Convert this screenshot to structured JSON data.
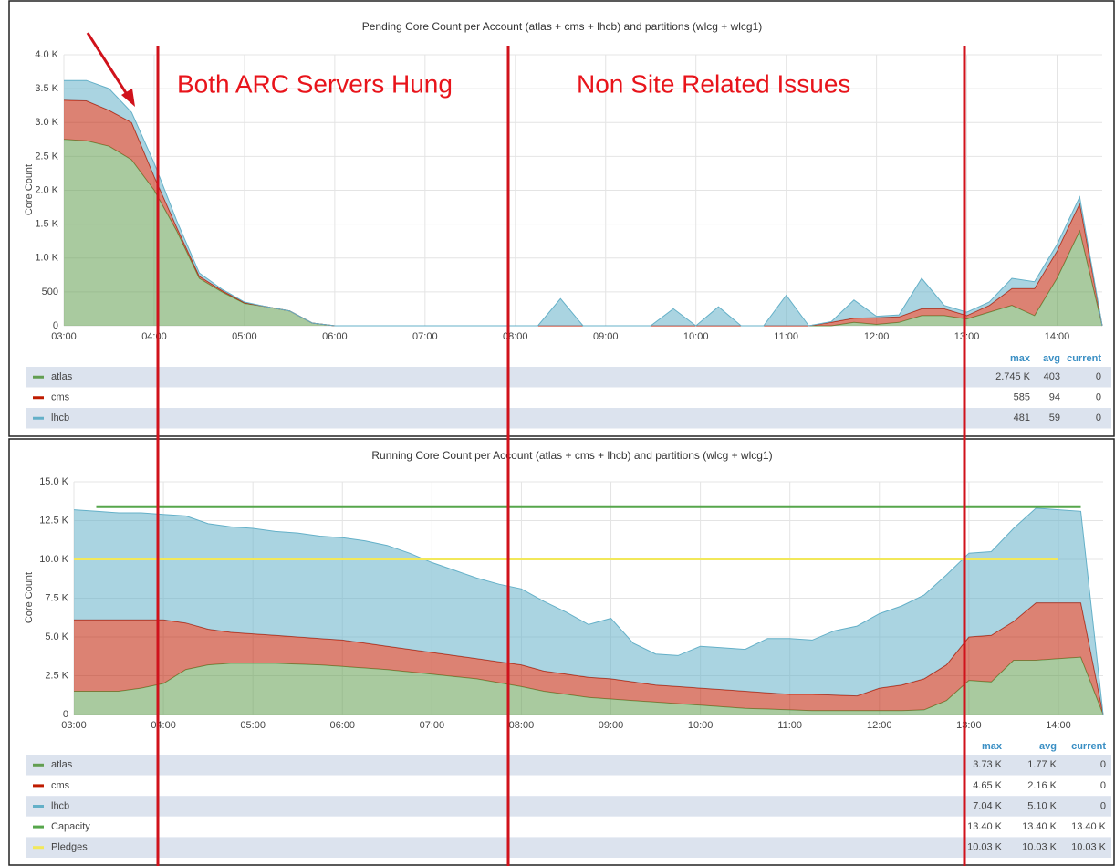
{
  "annotations": [
    "Both ARC Servers Hung",
    "Non Site Related Issues"
  ],
  "chart_data": [
    {
      "type": "area",
      "title": "Pending Core Count per Account (atlas + cms + lhcb) and partitions (wlcg + wlcg1)",
      "y_label": "Core Count",
      "x": [
        "03:00",
        "03:15",
        "03:30",
        "03:45",
        "04:00",
        "04:15",
        "04:30",
        "04:45",
        "05:00",
        "05:15",
        "05:30",
        "05:45",
        "06:00",
        "06:15",
        "06:30",
        "06:45",
        "07:00",
        "07:15",
        "07:30",
        "07:45",
        "08:00",
        "08:15",
        "08:30",
        "08:45",
        "09:00",
        "09:15",
        "09:30",
        "09:45",
        "10:00",
        "10:15",
        "10:30",
        "10:45",
        "11:00",
        "11:15",
        "11:30",
        "11:45",
        "12:00",
        "12:15",
        "12:30",
        "12:45",
        "13:00",
        "13:15",
        "13:30",
        "13:45",
        "14:00",
        "14:15",
        "14:30"
      ],
      "xlim": [
        "03:00",
        "14:30"
      ],
      "xticks": [
        "03:00",
        "04:00",
        "05:00",
        "06:00",
        "07:00",
        "08:00",
        "09:00",
        "10:00",
        "11:00",
        "12:00",
        "13:00",
        "14:00"
      ],
      "ylim": [
        0,
        4000
      ],
      "yticks": [
        0,
        500,
        {
          "value": 1000,
          "label": "1.0 K"
        },
        {
          "value": 1500,
          "label": "1.5 K"
        },
        {
          "value": 2000,
          "label": "2.0 K"
        },
        {
          "value": 2500,
          "label": "2.5 K"
        },
        {
          "value": 3000,
          "label": "3.0 K"
        },
        {
          "value": 3500,
          "label": "3.5 K"
        },
        {
          "value": 4000,
          "label": "4.0 K"
        }
      ],
      "grid": true,
      "legend_columns": [
        "max",
        "avg",
        "current"
      ],
      "series": [
        {
          "name": "atlas",
          "color": "#629e51",
          "style": "area",
          "stats": [
            "2.745 K",
            403,
            0
          ],
          "values": [
            2750,
            2730,
            2650,
            2450,
            2000,
            1400,
            700,
            500,
            330,
            280,
            220,
            40,
            0,
            0,
            0,
            0,
            0,
            0,
            0,
            0,
            0,
            0,
            0,
            0,
            0,
            0,
            0,
            0,
            0,
            0,
            0,
            0,
            0,
            0,
            0,
            50,
            20,
            50,
            150,
            150,
            100,
            200,
            300,
            150,
            700,
            1400,
            0
          ]
        },
        {
          "name": "cms",
          "color": "#bf1b00",
          "style": "area",
          "stats": [
            585,
            94,
            0
          ],
          "values": [
            580,
            590,
            530,
            550,
            200,
            50,
            30,
            20,
            10,
            0,
            0,
            0,
            0,
            0,
            0,
            0,
            0,
            0,
            0,
            0,
            0,
            0,
            0,
            0,
            0,
            0,
            0,
            0,
            0,
            0,
            0,
            0,
            0,
            0,
            50,
            60,
            100,
            80,
            100,
            100,
            50,
            100,
            250,
            400,
            400,
            400,
            0
          ]
        },
        {
          "name": "lhcb",
          "color": "#64b0c8",
          "style": "area",
          "stats": [
            481,
            59,
            0
          ],
          "values": [
            290,
            300,
            320,
            150,
            200,
            100,
            50,
            20,
            10,
            0,
            0,
            0,
            0,
            0,
            0,
            0,
            0,
            0,
            0,
            0,
            0,
            0,
            400,
            0,
            0,
            0,
            0,
            250,
            0,
            280,
            0,
            0,
            450,
            0,
            10,
            270,
            20,
            30,
            450,
            50,
            50,
            50,
            150,
            100,
            100,
            100,
            0
          ]
        }
      ]
    },
    {
      "type": "area",
      "title": "Running Core Count per Account (atlas + cms + lhcb) and partitions (wlcg + wlcg1)",
      "y_label": "Core Count",
      "x": [
        "03:00",
        "03:15",
        "03:30",
        "03:45",
        "04:00",
        "04:15",
        "04:30",
        "04:45",
        "05:00",
        "05:15",
        "05:30",
        "05:45",
        "06:00",
        "06:15",
        "06:30",
        "06:45",
        "07:00",
        "07:15",
        "07:30",
        "07:45",
        "08:00",
        "08:15",
        "08:30",
        "08:45",
        "09:00",
        "09:15",
        "09:30",
        "09:45",
        "10:00",
        "10:15",
        "10:30",
        "10:45",
        "11:00",
        "11:15",
        "11:30",
        "11:45",
        "12:00",
        "12:15",
        "12:30",
        "12:45",
        "13:00",
        "13:15",
        "13:30",
        "13:45",
        "14:00",
        "14:15",
        "14:30"
      ],
      "xlim": [
        "03:00",
        "14:30"
      ],
      "xticks": [
        "03:00",
        "04:00",
        "05:00",
        "06:00",
        "07:00",
        "08:00",
        "09:00",
        "10:00",
        "11:00",
        "12:00",
        "13:00",
        "14:00"
      ],
      "ylim": [
        0,
        15000
      ],
      "yticks": [
        0,
        {
          "value": 2500,
          "label": "2.5 K"
        },
        {
          "value": 5000,
          "label": "5.0 K"
        },
        {
          "value": 7500,
          "label": "7.5 K"
        },
        {
          "value": 10000,
          "label": "10.0 K"
        },
        {
          "value": 12500,
          "label": "12.5 K"
        },
        {
          "value": 15000,
          "label": "15.0 K"
        }
      ],
      "grid": true,
      "legend_columns": [
        "max",
        "avg",
        "current"
      ],
      "series": [
        {
          "name": "atlas",
          "color": "#629e51",
          "style": "area",
          "stats": [
            "3.73 K",
            "1.77 K",
            0
          ],
          "values": [
            1500,
            1500,
            1500,
            1700,
            2000,
            2900,
            3200,
            3300,
            3300,
            3300,
            3250,
            3200,
            3100,
            3000,
            2900,
            2750,
            2600,
            2450,
            2300,
            2050,
            1800,
            1500,
            1300,
            1100,
            1000,
            900,
            800,
            700,
            600,
            500,
            400,
            350,
            300,
            250,
            250,
            250,
            250,
            250,
            300,
            900,
            2200,
            2100,
            3500,
            3500,
            3600,
            3700,
            0
          ]
        },
        {
          "name": "cms",
          "color": "#bf1b00",
          "style": "area",
          "stats": [
            "4.65 K",
            "2.16 K",
            0
          ],
          "values": [
            4600,
            4600,
            4600,
            4400,
            4100,
            3000,
            2300,
            2000,
            1900,
            1800,
            1750,
            1700,
            1700,
            1600,
            1500,
            1450,
            1400,
            1350,
            1300,
            1350,
            1400,
            1300,
            1300,
            1300,
            1300,
            1200,
            1100,
            1100,
            1100,
            1100,
            1100,
            1050,
            1000,
            1050,
            1000,
            950,
            1450,
            1650,
            2000,
            2300,
            2800,
            3000,
            2500,
            3700,
            3600,
            3500,
            0
          ]
        },
        {
          "name": "lhcb",
          "color": "#64b0c8",
          "style": "area",
          "stats": [
            "7.04 K",
            "5.10 K",
            0
          ],
          "values": [
            7100,
            7000,
            6900,
            6900,
            6800,
            6900,
            6800,
            6800,
            6800,
            6700,
            6700,
            6600,
            6600,
            6600,
            6500,
            6200,
            5800,
            5500,
            5200,
            5000,
            4900,
            4500,
            4000,
            3400,
            3900,
            2500,
            2000,
            2000,
            2700,
            2700,
            2700,
            3500,
            3600,
            3500,
            4150,
            4500,
            4800,
            5100,
            5400,
            5800,
            5400,
            5400,
            6000,
            6100,
            6000,
            5900,
            0
          ]
        },
        {
          "name": "Capacity",
          "color": "#56a64b",
          "style": "line",
          "stats": [
            "13.40 K",
            "13.40 K",
            "13.40 K"
          ],
          "values": [
            null,
            13400,
            13400,
            13400,
            13400,
            13400,
            13400,
            13400,
            13400,
            13400,
            13400,
            13400,
            13400,
            13400,
            13400,
            13400,
            13400,
            13400,
            13400,
            13400,
            13400,
            13400,
            13400,
            13400,
            13400,
            13400,
            13400,
            13400,
            13400,
            13400,
            13400,
            13400,
            13400,
            13400,
            13400,
            13400,
            13400,
            13400,
            13400,
            13400,
            13400,
            13400,
            13400,
            13400,
            13400,
            13400,
            null
          ]
        },
        {
          "name": "Pledges",
          "color": "#f2e85a",
          "style": "line",
          "stats": [
            "10.03 K",
            "10.03 K",
            "10.03 K"
          ],
          "values": [
            10030,
            10030,
            10030,
            10030,
            10030,
            10030,
            10030,
            10030,
            10030,
            10030,
            10030,
            10030,
            10030,
            10030,
            10030,
            10030,
            10030,
            10030,
            10030,
            10030,
            10030,
            10030,
            10030,
            10030,
            10030,
            10030,
            10030,
            10030,
            10030,
            10030,
            10030,
            10030,
            10030,
            10030,
            10030,
            10030,
            10030,
            10030,
            10030,
            10030,
            10030,
            10030,
            10030,
            10030,
            10030,
            null,
            null
          ]
        }
      ]
    }
  ]
}
